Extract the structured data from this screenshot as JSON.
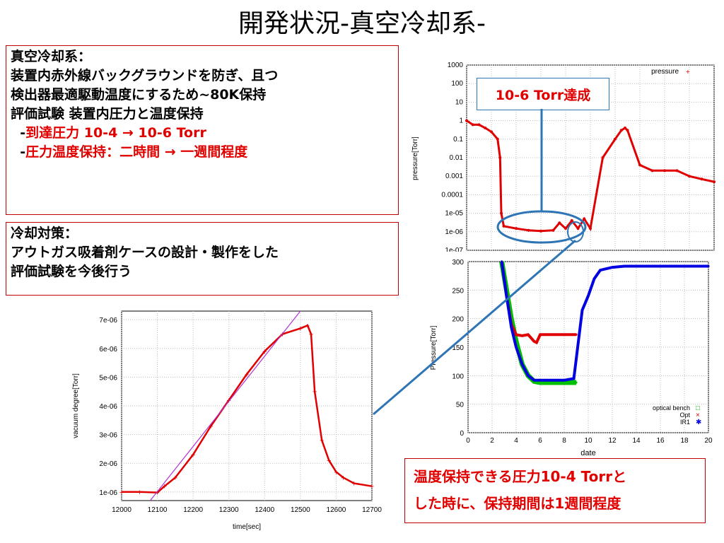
{
  "slide": {
    "title": "開発状況-真空冷却系-"
  },
  "box1": {
    "line1": "真空冷却系：",
    "line2": "装置内赤外線バックグラウンドを防ぎ、且つ",
    "line3": "検出器最適駆動温度にするため~80K保持",
    "line4": "評価試験 装置内圧力と温度保持",
    "line5_prefix": "-",
    "line5_text": "到達圧力 10-4 → 10-6 Torr",
    "line6_prefix": "-",
    "line6_text": "圧力温度保持：二時間 → 一週間程度"
  },
  "box2": {
    "line1": "冷却対策：",
    "line2": "アウトガス吸着剤ケースの設計・製作をした",
    "line3": "評価試験を今後行う"
  },
  "callout_top": "10-6 Torr達成",
  "callout_bottom": {
    "line1": "温度保持できる圧力10-4 Torrと",
    "line2": "した時に、保持期間は1週間程度"
  },
  "chart_data": [
    {
      "type": "scatter",
      "name": "pressure-vs-date",
      "ylabel": "pressure[Torr]",
      "yscale": "log",
      "yticks": [
        "1000",
        "100",
        "10",
        "1",
        "0.1",
        "0.01",
        "0.001",
        "0.0001",
        "1e-05",
        "1e-06",
        "1e-07"
      ],
      "series": [
        {
          "name": "pressure",
          "color": "#e00000",
          "x": [
            0,
            0.5,
            1,
            1.5,
            2,
            2.5,
            2.7,
            2.8,
            3,
            4,
            5,
            6,
            7,
            7.5,
            8,
            8.5,
            9,
            9.5,
            10,
            11,
            12,
            12.5,
            12.8,
            13,
            14,
            15,
            16,
            17,
            18,
            19,
            20
          ],
          "y": [
            1,
            0.6,
            0.6,
            0.4,
            0.25,
            0.1,
            0.01,
            1e-05,
            2e-06,
            1.5e-06,
            1.2e-06,
            1.1e-06,
            1.2e-06,
            3e-06,
            1.5e-06,
            4e-06,
            1.5e-06,
            5e-06,
            1.5e-06,
            0.01,
            0.1,
            0.3,
            0.4,
            0.3,
            0.004,
            0.002,
            0.002,
            0.002,
            0.001,
            0.0007,
            0.0005
          ]
        }
      ]
    },
    {
      "type": "scatter",
      "name": "temperature-vs-date",
      "xlabel": "date",
      "ylabel": "Pressure[Torr]",
      "xlim": [
        0,
        20
      ],
      "ylim": [
        0,
        300
      ],
      "xticks": [
        "0",
        "2",
        "4",
        "6",
        "8",
        "10",
        "12",
        "14",
        "16",
        "18",
        "20"
      ],
      "yticks": [
        "0",
        "50",
        "100",
        "150",
        "200",
        "250",
        "300"
      ],
      "series": [
        {
          "name": "optical bench",
          "color": "#00c000",
          "x": [
            2.8,
            3.2,
            3.6,
            4,
            4.5,
            5,
            5.5,
            6,
            7,
            8,
            9
          ],
          "y": [
            300,
            250,
            200,
            160,
            120,
            100,
            90,
            88,
            88,
            88,
            88
          ]
        },
        {
          "name": "Opt",
          "color": "#e00000",
          "x": [
            2.8,
            3.2,
            3.6,
            4,
            4.5,
            5,
            5.5,
            5.7,
            6,
            7,
            8,
            9
          ],
          "y": [
            300,
            240,
            190,
            172,
            170,
            172,
            160,
            158,
            172,
            172,
            172,
            172
          ]
        },
        {
          "name": "IR1",
          "color": "#0000e0",
          "x": [
            2.8,
            3.2,
            3.6,
            4,
            4.5,
            5,
            5.5,
            6,
            7,
            8,
            8.8,
            9.5,
            10,
            10.5,
            11,
            12,
            13,
            14,
            16,
            18,
            20
          ],
          "y": [
            300,
            240,
            185,
            150,
            120,
            100,
            92,
            92,
            92,
            92,
            95,
            215,
            240,
            270,
            285,
            290,
            292,
            292,
            292,
            292,
            292
          ]
        }
      ]
    },
    {
      "type": "scatter",
      "name": "vacuum-zoom",
      "xlabel": "time[sec]",
      "ylabel": "vacuum degree[Torr]",
      "xlim": [
        12000,
        12700
      ],
      "ylim": [
        7e-07,
        7.3e-06
      ],
      "xticks": [
        "12000",
        "12100",
        "12200",
        "12300",
        "12400",
        "12500",
        "12600",
        "12700"
      ],
      "yticks": [
        "1e-06",
        "2e-06",
        "3e-06",
        "4e-06",
        "5e-06",
        "6e-06",
        "7e-06"
      ],
      "series": [
        {
          "name": "vacuum degree",
          "color": "#e00000",
          "x": [
            12000,
            12050,
            12100,
            12120,
            12150,
            12200,
            12250,
            12300,
            12350,
            12400,
            12450,
            12500,
            12520,
            12530,
            12540,
            12560,
            12580,
            12600,
            12620,
            12650,
            12700
          ],
          "y": [
            1e-06,
            1e-06,
            9.8e-07,
            1.2e-06,
            1.5e-06,
            2.3e-06,
            3.3e-06,
            4.2e-06,
            5.1e-06,
            5.9e-06,
            6.5e-06,
            6.7e-06,
            6.8e-06,
            6.5e-06,
            4.5e-06,
            2.8e-06,
            2.1e-06,
            1.7e-06,
            1.5e-06,
            1.3e-06,
            1.2e-06
          ]
        },
        {
          "name": "fit",
          "color": "#b030d0",
          "x": [
            12080,
            12500
          ],
          "y": [
            7e-07,
            7.3e-06
          ]
        }
      ]
    }
  ]
}
